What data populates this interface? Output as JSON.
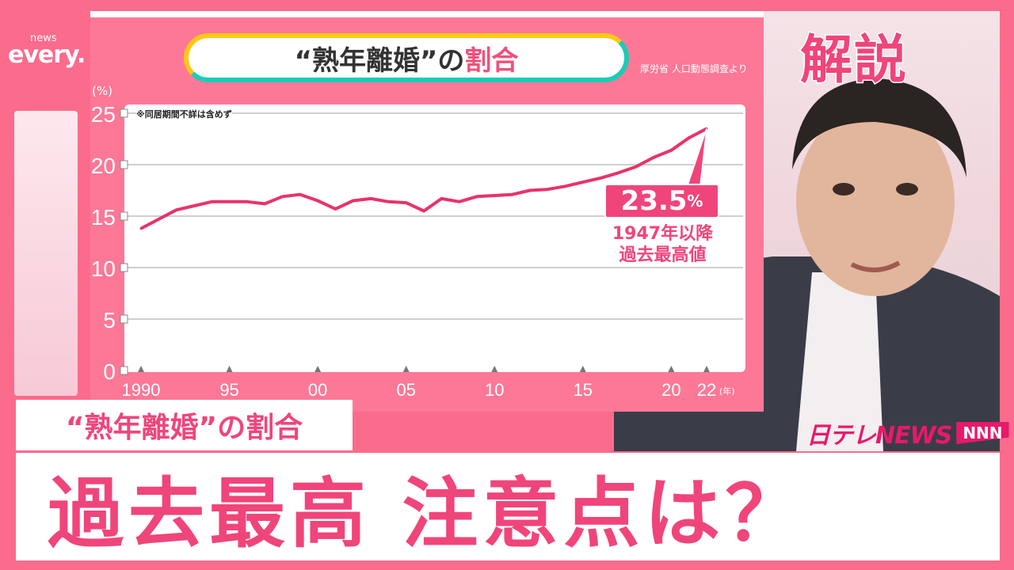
{
  "logo": {
    "top": "news",
    "main": "every."
  },
  "corner_badge": "解説",
  "chart_panel": {
    "title_prefix": "“熟年離婚”の",
    "title_highlight": "割合",
    "source": "厚労省 人口動態調査より",
    "unit": "(%)",
    "note": "※同居期間不詳は含めず",
    "callout_value": "23.5",
    "callout_unit": "%",
    "callout_line1": "1947年以降",
    "callout_line2": "過去最高値"
  },
  "chart_data": {
    "type": "line",
    "x": [
      1990,
      1991,
      1992,
      1993,
      1994,
      1995,
      1996,
      1997,
      1998,
      1999,
      2000,
      2001,
      2002,
      2003,
      2004,
      2005,
      2006,
      2007,
      2008,
      2009,
      2010,
      2011,
      2012,
      2013,
      2014,
      2015,
      2016,
      2017,
      2018,
      2019,
      2020,
      2021,
      2022
    ],
    "series": [
      {
        "values": [
          13.8,
          14.7,
          15.6,
          16.0,
          16.4,
          16.4,
          16.4,
          16.2,
          16.9,
          17.1,
          16.5,
          15.7,
          16.5,
          16.7,
          16.4,
          16.3,
          15.5,
          16.7,
          16.4,
          16.9,
          17.0,
          17.1,
          17.5,
          17.6,
          17.9,
          18.3,
          18.7,
          19.2,
          19.8,
          20.7,
          21.4,
          22.6,
          23.5
        ]
      }
    ],
    "ylabel": "(%)",
    "xlabel": "(年)",
    "ylim": [
      0,
      25
    ],
    "yticks": [
      "0",
      "5",
      "10",
      "15",
      "20",
      "25"
    ],
    "ytick_values": [
      0,
      5,
      10,
      15,
      20,
      25
    ],
    "xticks": [
      "1990",
      "95",
      "00",
      "05",
      "10",
      "15",
      "20",
      "22"
    ],
    "xtick_values": [
      1990,
      1995,
      2000,
      2005,
      2010,
      2015,
      2020,
      2022
    ],
    "grid": true,
    "line_color": "#e8336a"
  },
  "subtitle": "“熟年離婚”の割合",
  "headline": "過去最高 注意点は？",
  "broadcaster_logo": {
    "main": "日テレNEWS",
    "badge": "NNN"
  },
  "colors": {
    "background": "#fb6b8c",
    "accent": "#f0457a",
    "teal": "#17cdb5",
    "yellow": "#ffc814"
  }
}
